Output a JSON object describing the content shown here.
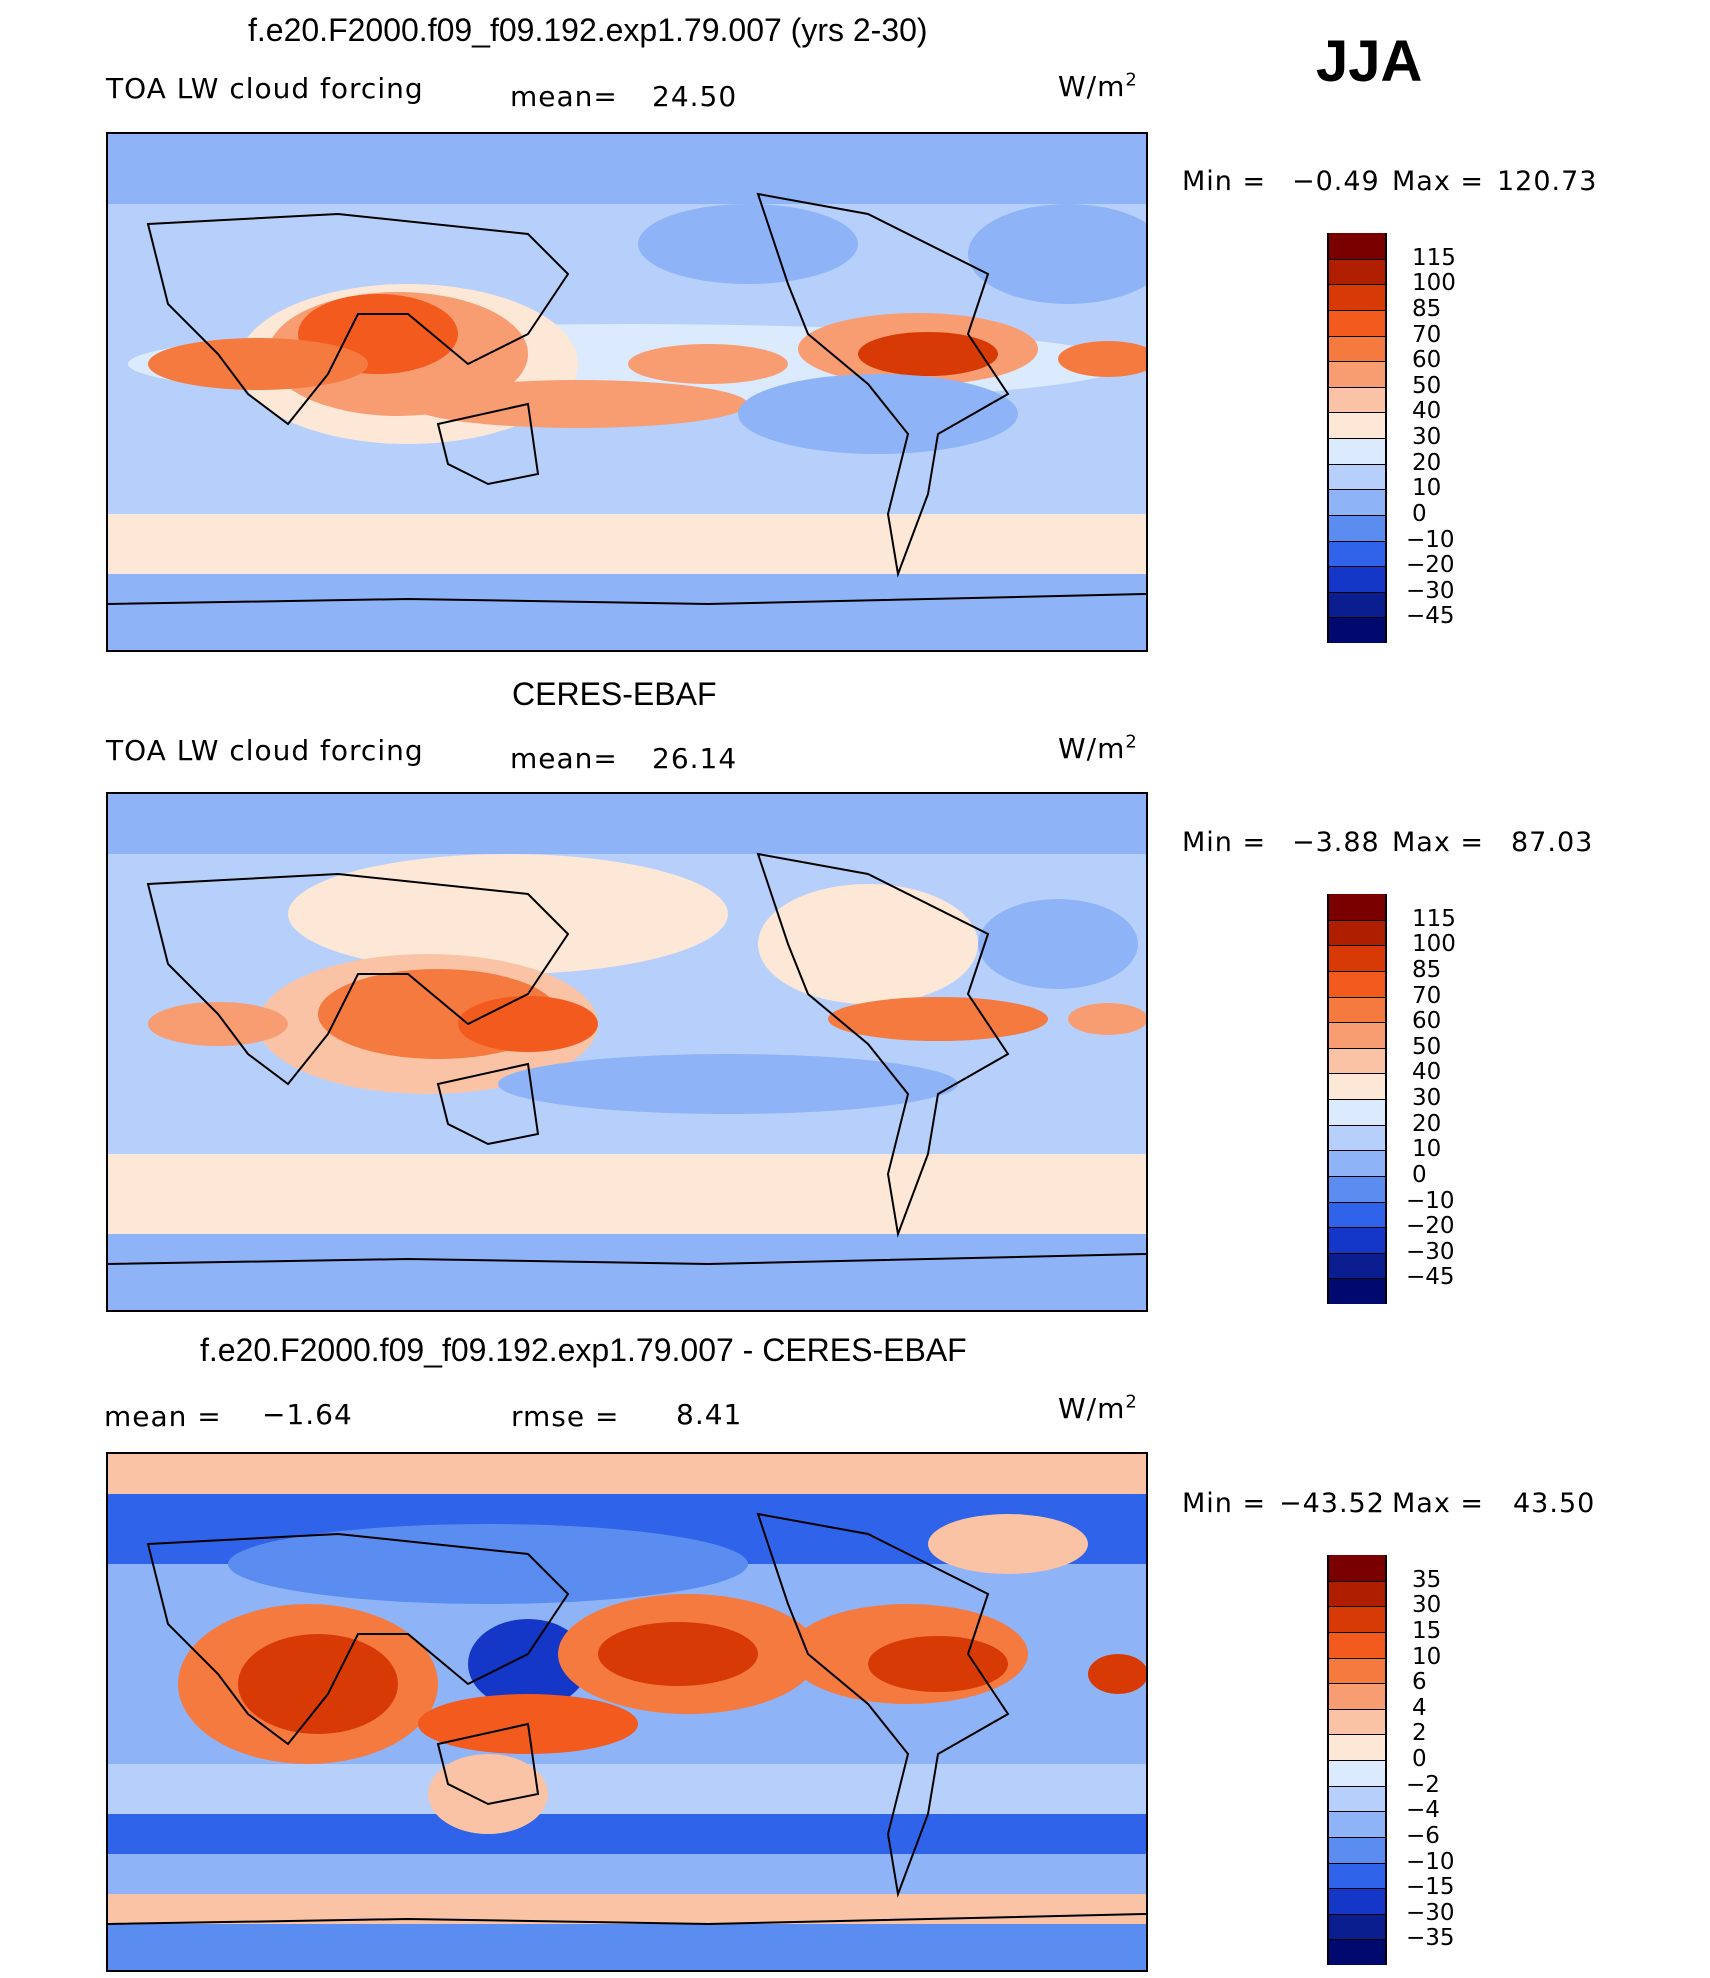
{
  "season": "JJA",
  "panels": [
    {
      "title": "f.e20.F2000.f09_f09.192.exp1.79.007 (yrs 2-30)",
      "left_label": "TOA LW cloud forcing",
      "mid_label": "mean=",
      "mid_value": "24.50",
      "right_label": "",
      "right_value": "",
      "units": "W/m",
      "units_sup": "2",
      "min_label": "Min  =",
      "min_value": "−0.49",
      "max_label": "Max  =",
      "max_value": "120.73",
      "colorbar_labels": [
        "115",
        "100",
        "85",
        "70",
        "60",
        "50",
        "40",
        "30",
        "20",
        "10",
        "0",
        "−10",
        "−20",
        "−30",
        "−45"
      ]
    },
    {
      "title": "CERES-EBAF",
      "left_label": "TOA LW cloud forcing",
      "mid_label": "mean=",
      "mid_value": "26.14",
      "right_label": "",
      "right_value": "",
      "units": "W/m",
      "units_sup": "2",
      "min_label": "Min  =",
      "min_value": "−3.88",
      "max_label": "Max  =",
      "max_value": "87.03",
      "colorbar_labels": [
        "115",
        "100",
        "85",
        "70",
        "60",
        "50",
        "40",
        "30",
        "20",
        "10",
        "0",
        "−10",
        "−20",
        "−30",
        "−45"
      ]
    },
    {
      "title": "f.e20.F2000.f09_f09.192.exp1.79.007 - CERES-EBAF",
      "left_label": "mean  =",
      "left_value": "−1.64",
      "mid_label": "rmse  =",
      "mid_value": "8.41",
      "units": "W/m",
      "units_sup": "2",
      "min_label": "Min  =",
      "min_value": "−43.52",
      "max_label": "Max  =",
      "max_value": "43.50",
      "colorbar_labels": [
        "35",
        "30",
        "15",
        "10",
        "6",
        "4",
        "2",
        "0",
        "−2",
        "−4",
        "−6",
        "−10",
        "−15",
        "−30",
        "−35"
      ]
    }
  ],
  "colorbar_colors": [
    "#7a0000",
    "#b01e00",
    "#d83a05",
    "#f25a1e",
    "#f57a3f",
    "#f89c72",
    "#fac3a5",
    "#fde7d6",
    "#dbeafd",
    "#b6d0fb",
    "#8fb3f7",
    "#5b8df0",
    "#2f63ea",
    "#1537c7",
    "#0a1e8f",
    "#000a6e"
  ]
}
